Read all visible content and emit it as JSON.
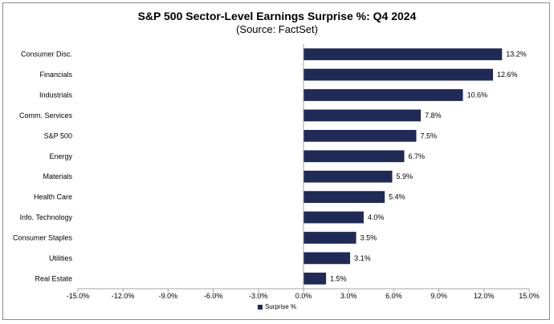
{
  "chart_data": {
    "type": "bar",
    "orientation": "horizontal",
    "title": "S&P 500 Sector-Level Earnings Surprise %: Q4 2024",
    "subtitle": "(Source: FactSet)",
    "categories": [
      "Consumer Disc.",
      "Financials",
      "Industrials",
      "Comm. Services",
      "S&P 500",
      "Energy",
      "Materials",
      "Health Care",
      "Info. Technology",
      "Consumer Staples",
      "Utilities",
      "Real Estate"
    ],
    "series": [
      {
        "name": "Surprise %",
        "values": [
          13.2,
          12.6,
          10.6,
          7.8,
          7.5,
          6.7,
          5.9,
          5.4,
          4.0,
          3.5,
          3.1,
          1.5
        ],
        "labels": [
          "13.2%",
          "12.6%",
          "10.6%",
          "7.8%",
          "7.5%",
          "6.7%",
          "5.9%",
          "5.4%",
          "4.0%",
          "3.5%",
          "3.1%",
          "1.5%"
        ]
      }
    ],
    "xlim": [
      -15,
      15
    ],
    "xticks": [
      -15,
      -12,
      -9,
      -6,
      -3,
      0,
      3,
      6,
      9,
      12,
      15
    ],
    "xtick_labels": [
      "-15.0%",
      "-12.0%",
      "-9.0%",
      "-6.0%",
      "-3.0%",
      "0.0%",
      "3.0%",
      "6.0%",
      "9.0%",
      "12.0%",
      "15.0%"
    ],
    "grid": false,
    "legend_position": "bottom",
    "bar_color": "#1f2a56"
  }
}
